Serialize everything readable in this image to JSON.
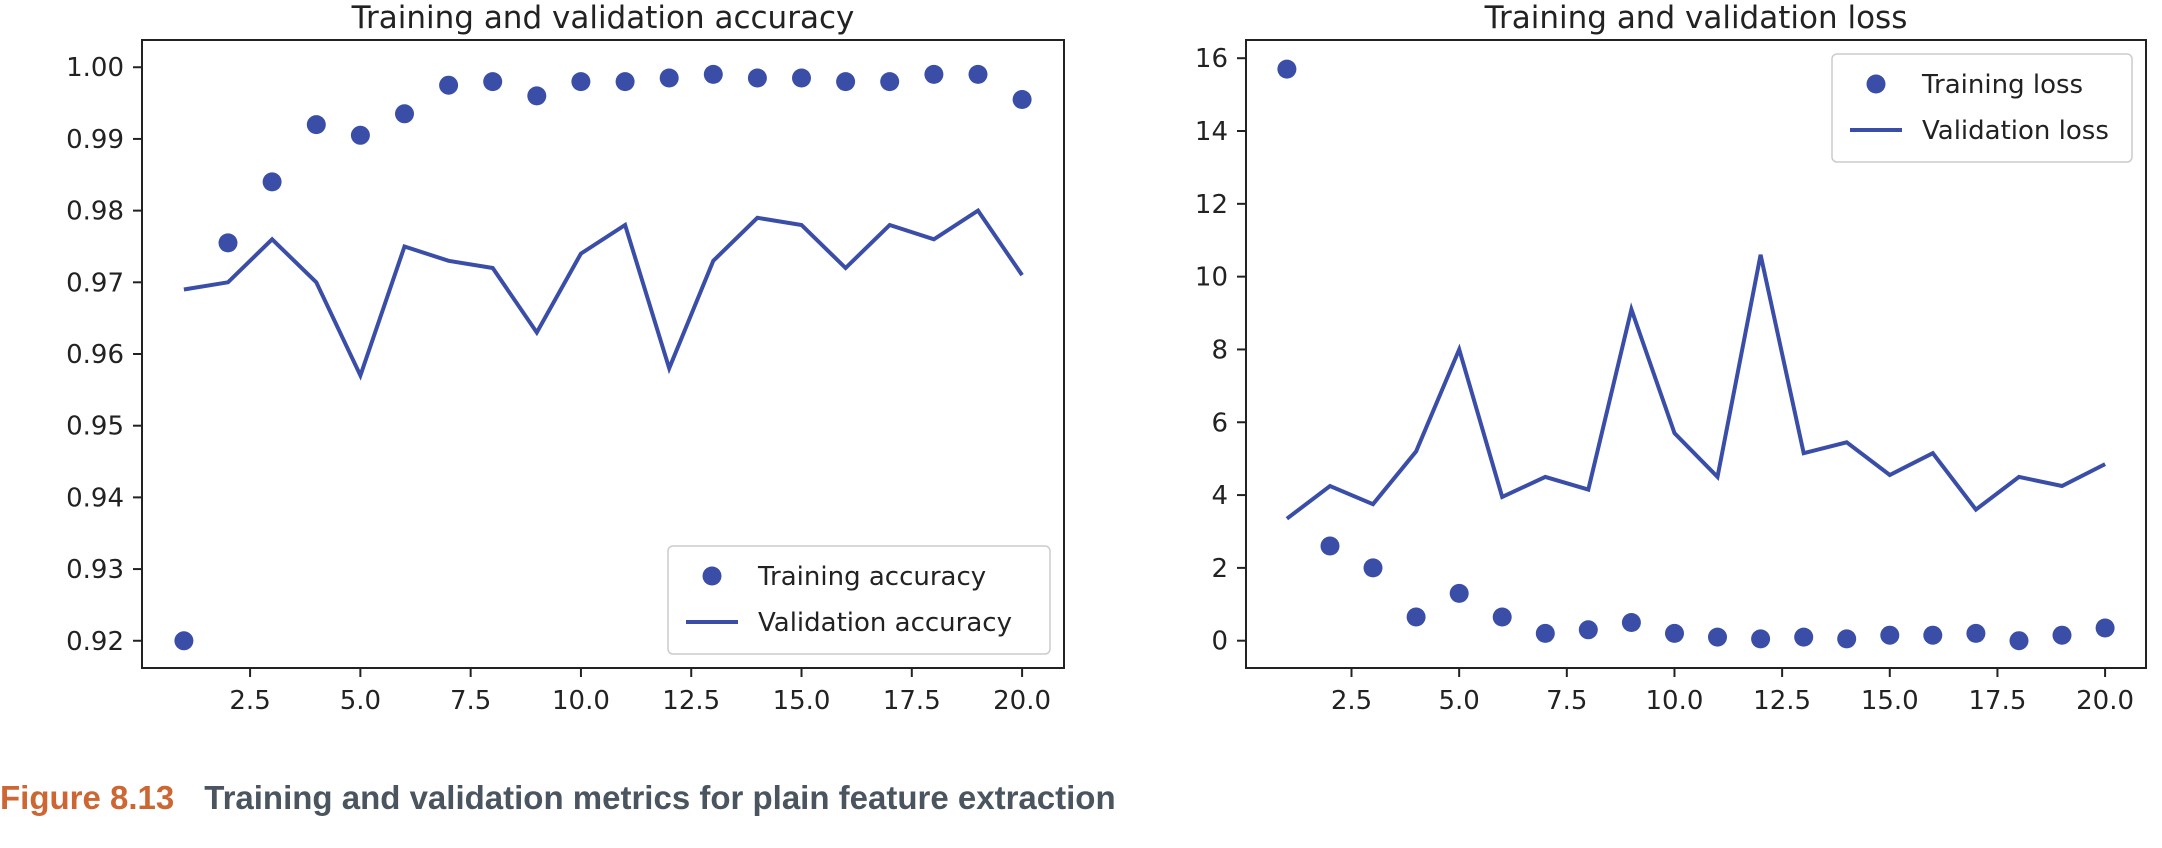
{
  "colors": {
    "series": "#3a4ea8",
    "axis": "#222222",
    "text": "#222222",
    "caption_label": "#cc6633",
    "caption_text": "#4a5560"
  },
  "chart_data": [
    {
      "type": "line",
      "title": "Training and validation accuracy",
      "xlabel": "",
      "ylabel": "",
      "xlim": [
        0.05,
        20.95
      ],
      "ylim": [
        0.9162,
        1.0038
      ],
      "xticks": [
        2.5,
        5.0,
        7.5,
        10.0,
        12.5,
        15.0,
        17.5,
        20.0
      ],
      "xtick_labels": [
        "2.5",
        "5.0",
        "7.5",
        "10.0",
        "12.5",
        "15.0",
        "17.5",
        "20.0"
      ],
      "yticks": [
        0.92,
        0.93,
        0.94,
        0.95,
        0.96,
        0.97,
        0.98,
        0.99,
        1.0
      ],
      "ytick_labels": [
        "0.92",
        "0.93",
        "0.94",
        "0.95",
        "0.96",
        "0.97",
        "0.98",
        "0.99",
        "1.00"
      ],
      "legend_position": "lower-right",
      "grid": false,
      "x": [
        1,
        2,
        3,
        4,
        5,
        6,
        7,
        8,
        9,
        10,
        11,
        12,
        13,
        14,
        15,
        16,
        17,
        18,
        19,
        20
      ],
      "series": [
        {
          "name": "Training accuracy",
          "style": "dots",
          "values": [
            0.92,
            0.9755,
            0.984,
            0.992,
            0.9905,
            0.9935,
            0.9975,
            0.998,
            0.996,
            0.998,
            0.998,
            0.9985,
            0.999,
            0.9985,
            0.9985,
            0.998,
            0.998,
            0.999,
            0.999,
            0.9955
          ]
        },
        {
          "name": "Validation accuracy",
          "style": "line",
          "values": [
            0.969,
            0.97,
            0.976,
            0.97,
            0.957,
            0.975,
            0.973,
            0.972,
            0.963,
            0.974,
            0.978,
            0.958,
            0.973,
            0.979,
            0.978,
            0.972,
            0.978,
            0.976,
            0.98,
            0.971
          ]
        }
      ]
    },
    {
      "type": "line",
      "title": "Training and validation loss",
      "xlabel": "",
      "ylabel": "",
      "xlim": [
        0.05,
        20.95
      ],
      "ylim": [
        -0.75,
        16.5
      ],
      "xticks": [
        2.5,
        5.0,
        7.5,
        10.0,
        12.5,
        15.0,
        17.5,
        20.0
      ],
      "xtick_labels": [
        "2.5",
        "5.0",
        "7.5",
        "10.0",
        "12.5",
        "15.0",
        "17.5",
        "20.0"
      ],
      "yticks": [
        0,
        2,
        4,
        6,
        8,
        10,
        12,
        14,
        16
      ],
      "ytick_labels": [
        "0",
        "2",
        "4",
        "6",
        "8",
        "10",
        "12",
        "14",
        "16"
      ],
      "legend_position": "upper-right",
      "grid": false,
      "x": [
        1,
        2,
        3,
        4,
        5,
        6,
        7,
        8,
        9,
        10,
        11,
        12,
        13,
        14,
        15,
        16,
        17,
        18,
        19,
        20
      ],
      "series": [
        {
          "name": "Training loss",
          "style": "dots",
          "values": [
            15.7,
            2.6,
            2.0,
            0.65,
            1.3,
            0.65,
            0.2,
            0.3,
            0.5,
            0.2,
            0.1,
            0.05,
            0.1,
            0.05,
            0.15,
            0.15,
            0.2,
            0.0,
            0.15,
            0.35
          ]
        },
        {
          "name": "Validation loss",
          "style": "line",
          "values": [
            3.35,
            4.25,
            3.75,
            5.2,
            8.0,
            3.95,
            4.5,
            4.15,
            9.1,
            5.7,
            4.5,
            10.6,
            5.15,
            5.45,
            4.55,
            5.15,
            3.6,
            4.5,
            4.25,
            4.85
          ]
        }
      ]
    }
  ],
  "caption": {
    "label": "Figure 8.13",
    "text": "Training and validation metrics for plain feature extraction"
  }
}
